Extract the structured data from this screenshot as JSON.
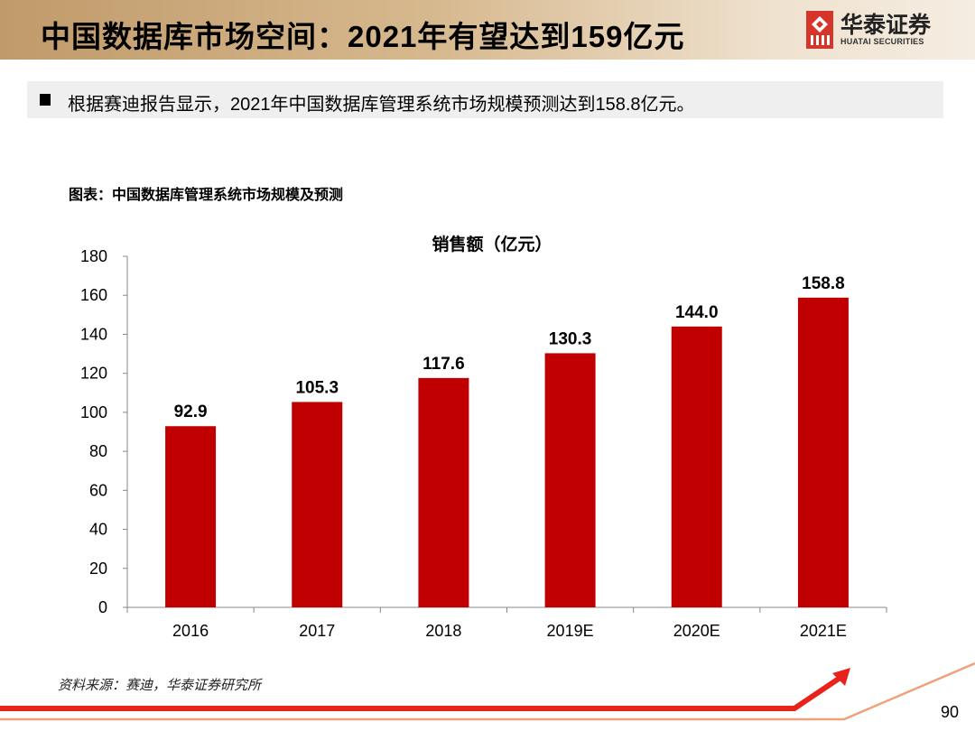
{
  "header": {
    "title": "中国数据库市场空间：2021年有望达到159亿元"
  },
  "logo": {
    "cn": "华泰证券",
    "en": "HUATAI SECURITIES"
  },
  "bullet": {
    "text": "根据赛迪报告显示，2021年中国数据库管理系统市场规模预测达到158.8亿元。"
  },
  "figure": {
    "title": "图表：中国数据库管理系统市场规模及预测"
  },
  "footer": {
    "source": "资料来源：赛迪，华泰证券研究所",
    "page": "90"
  },
  "colors": {
    "bar": "#c00000",
    "header_band": "#c09a6a",
    "stripe_red": "#e8231c",
    "stripe_orange": "#f0a07a"
  },
  "chart_data": {
    "type": "bar",
    "title": "销售额（亿元）",
    "categories": [
      "2016",
      "2017",
      "2018",
      "2019E",
      "2020E",
      "2021E"
    ],
    "values": [
      92.9,
      105.3,
      117.6,
      130.3,
      144.0,
      158.8
    ],
    "labels": [
      "92.9",
      "105.3",
      "117.6",
      "130.3",
      "144.0",
      "158.8"
    ],
    "ylim": [
      0,
      180
    ],
    "yticks": [
      "0",
      "20",
      "40",
      "60",
      "80",
      "100",
      "120",
      "140",
      "160",
      "180"
    ],
    "grid": false,
    "legend": "none"
  }
}
